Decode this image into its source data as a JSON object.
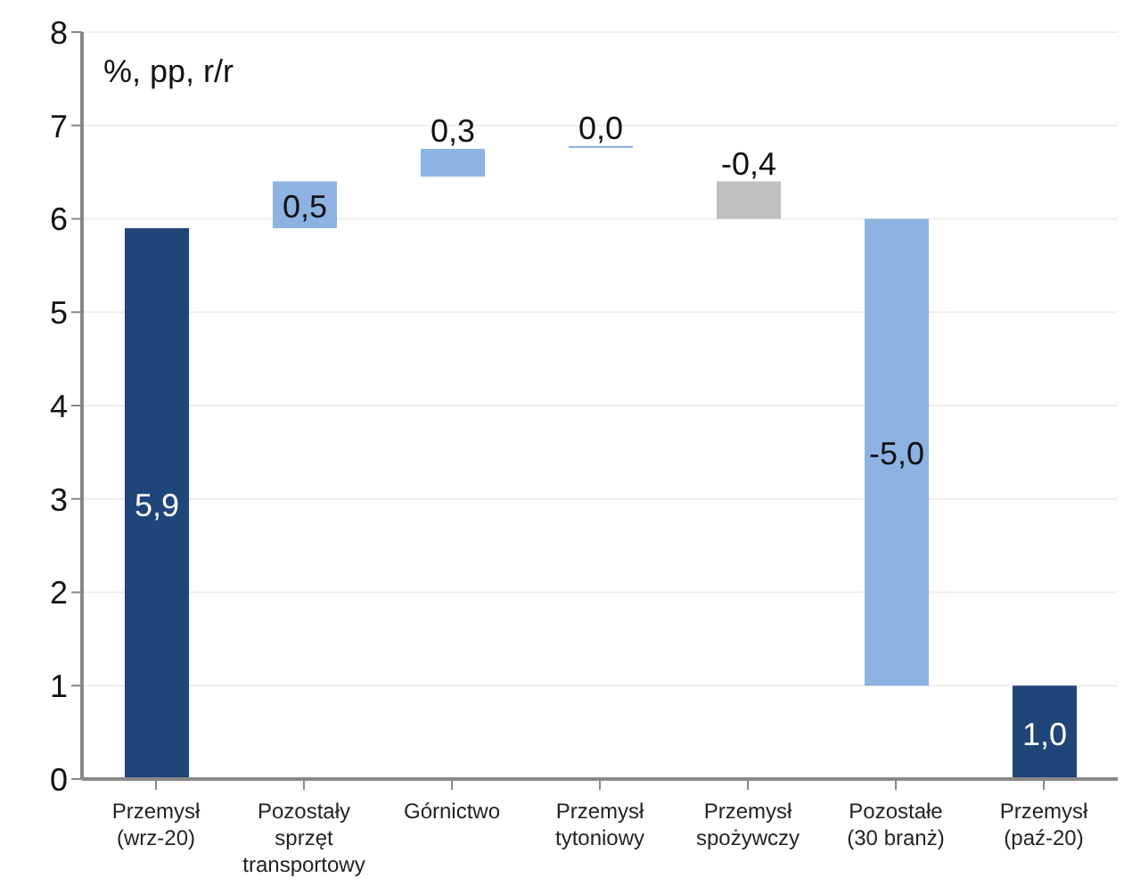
{
  "chart_data": {
    "type": "bar",
    "ylabel": "%, pp, r/r",
    "categories": [
      "Przemysł\n(wrz-20)",
      "Pozostały\nsprzęt\ntransportowy",
      "Górnictwo",
      "Przemysł\ntytoniowy",
      "Przemysł\nspożywczy",
      "Pozostałe\n(30 branż)",
      "Przemysł\n(paź-20)"
    ],
    "values": [
      5.9,
      0.5,
      0.3,
      0.02,
      -0.4,
      -5.0,
      1.0
    ],
    "base": [
      0,
      5.9,
      6.45,
      6.76,
      6.4,
      6.0,
      0
    ],
    "colors": [
      "#1f4579",
      "#8db3e2",
      "#8db3e2",
      "#8db3e2",
      "#bfbfbf",
      "#8db3e2",
      "#1f4579"
    ],
    "value_labels": [
      "5,9",
      "0,5",
      "0,3",
      "0,0",
      "-0,4",
      "-5,0",
      "1,0"
    ],
    "ylim": [
      0,
      8
    ],
    "yticks": [
      0,
      1,
      2,
      3,
      4,
      5,
      6,
      7,
      8
    ],
    "grid": "y"
  }
}
